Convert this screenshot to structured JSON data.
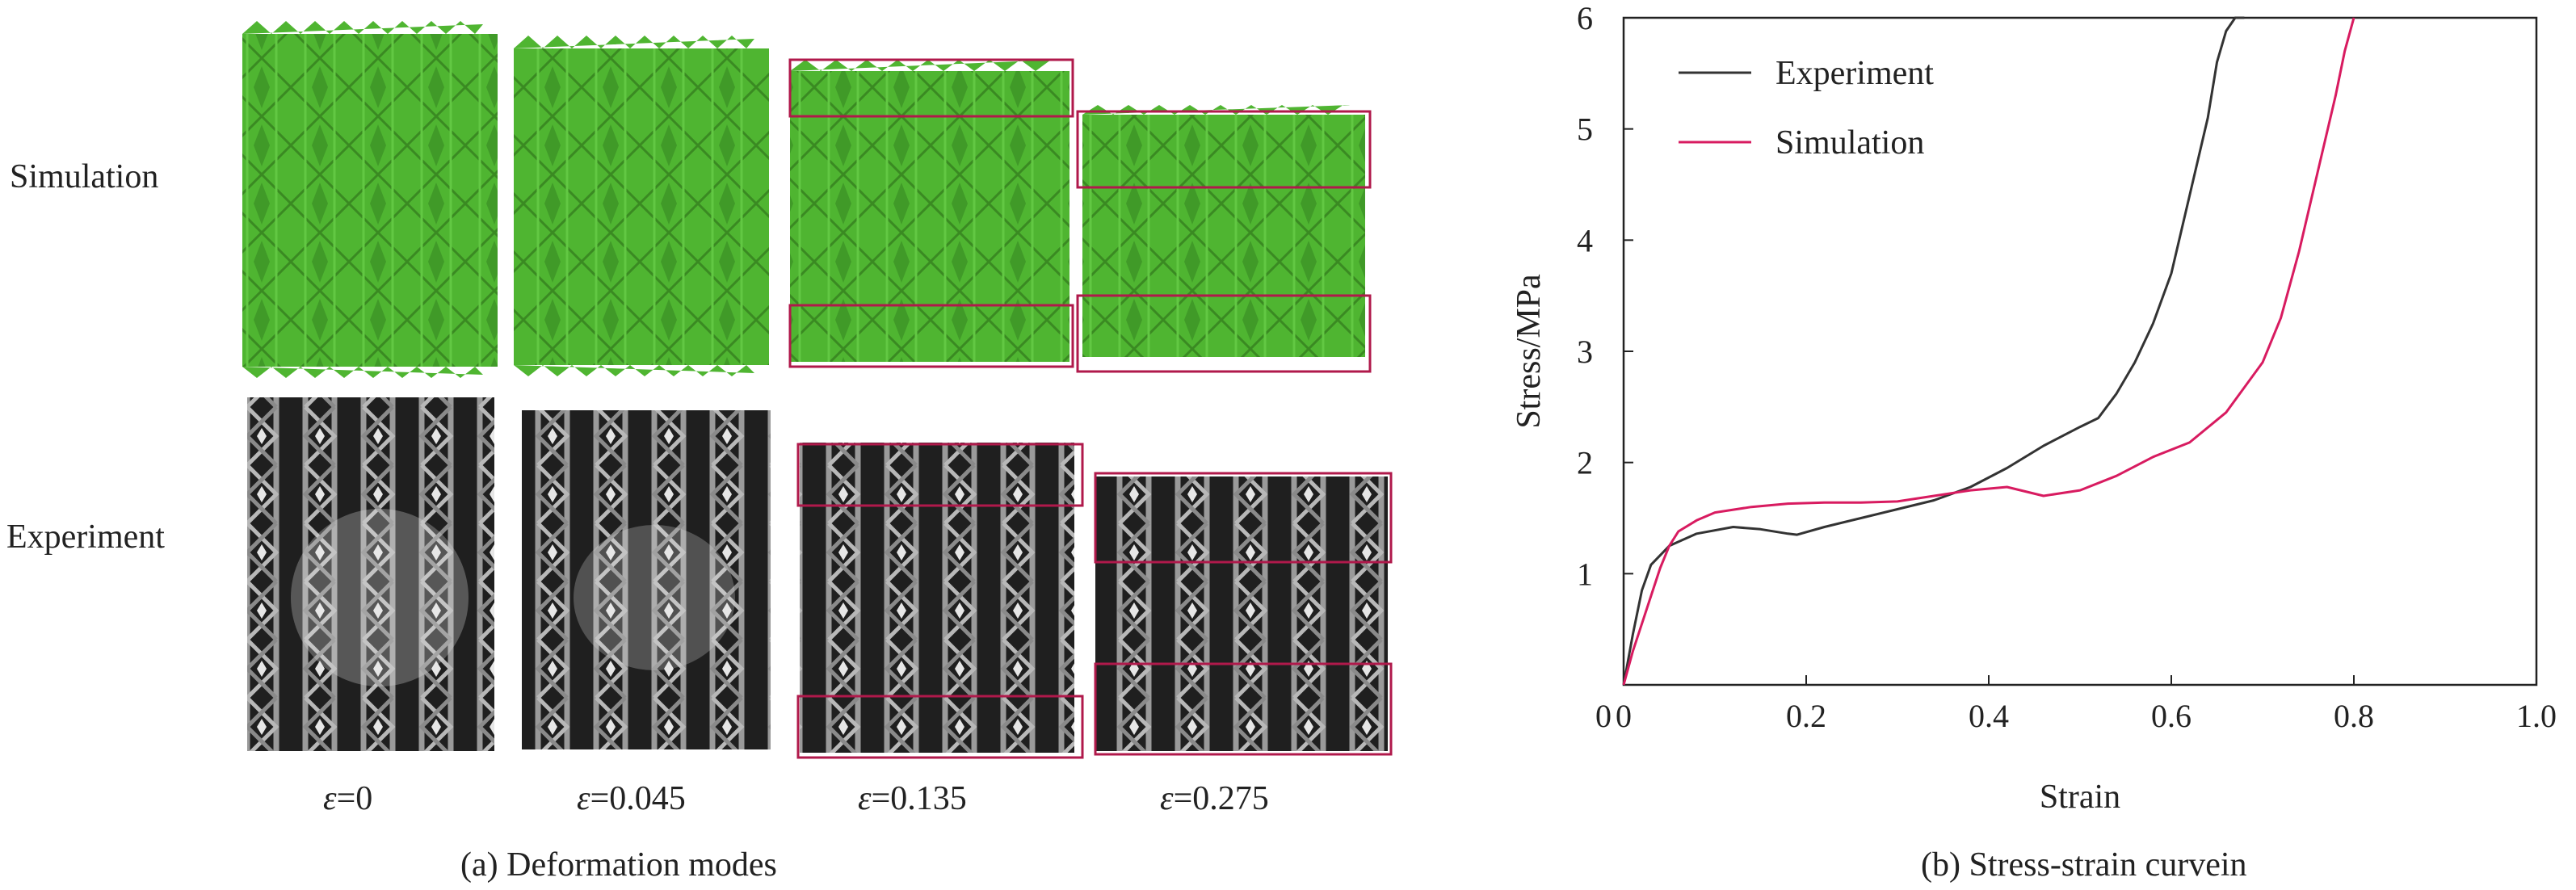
{
  "panel_a": {
    "caption": "(a) Deformation modes",
    "row_labels": [
      "Simulation",
      "Experiment"
    ],
    "strain_labels": [
      {
        "symbol": "ε",
        "value": "=0"
      },
      {
        "symbol": "ε",
        "value": "=0.045"
      },
      {
        "symbol": "ε",
        "value": "=0.135"
      },
      {
        "symbol": "ε",
        "value": "=0.275"
      }
    ],
    "colors": {
      "simulation": "#4fb531",
      "experiment": "#2d2d2d",
      "highlight_box": "#b0194b"
    }
  },
  "panel_b": {
    "caption": "(b) Stress-strain curvein",
    "chart_data": {
      "type": "line",
      "xlabel": "Strain",
      "ylabel": "Stress/MPa",
      "xlim": [
        0,
        1.0
      ],
      "ylim": [
        0,
        6
      ],
      "xticks": [
        "0",
        "0.2",
        "0.4",
        "0.6",
        "0.8",
        "1.0"
      ],
      "yticks": [
        "1",
        "2",
        "3",
        "4",
        "5",
        "6"
      ],
      "legend_position": "top-left",
      "series": [
        {
          "name": "Experiment",
          "color": "#333333",
          "x": [
            0,
            0.01,
            0.02,
            0.03,
            0.05,
            0.08,
            0.12,
            0.15,
            0.18,
            0.19,
            0.22,
            0.26,
            0.3,
            0.34,
            0.38,
            0.42,
            0.46,
            0.5,
            0.52,
            0.54,
            0.56,
            0.58,
            0.6,
            0.62,
            0.64,
            0.65,
            0.66,
            0.67,
            0.68
          ],
          "y": [
            0,
            0.45,
            0.85,
            1.08,
            1.25,
            1.36,
            1.42,
            1.4,
            1.36,
            1.35,
            1.42,
            1.5,
            1.58,
            1.66,
            1.78,
            1.95,
            2.15,
            2.32,
            2.4,
            2.62,
            2.9,
            3.25,
            3.7,
            4.4,
            5.1,
            5.6,
            5.88,
            6.0,
            6.0
          ]
        },
        {
          "name": "Simulation",
          "color": "#d81b60",
          "x": [
            0,
            0.01,
            0.02,
            0.03,
            0.04,
            0.05,
            0.06,
            0.08,
            0.1,
            0.14,
            0.18,
            0.22,
            0.26,
            0.3,
            0.34,
            0.38,
            0.42,
            0.46,
            0.5,
            0.54,
            0.58,
            0.62,
            0.66,
            0.7,
            0.72,
            0.74,
            0.76,
            0.78,
            0.79,
            0.8
          ],
          "y": [
            0,
            0.3,
            0.55,
            0.8,
            1.05,
            1.25,
            1.38,
            1.48,
            1.55,
            1.6,
            1.63,
            1.64,
            1.64,
            1.65,
            1.7,
            1.75,
            1.78,
            1.7,
            1.75,
            1.88,
            2.05,
            2.18,
            2.45,
            2.9,
            3.3,
            3.9,
            4.6,
            5.3,
            5.7,
            6.0
          ]
        }
      ]
    }
  }
}
